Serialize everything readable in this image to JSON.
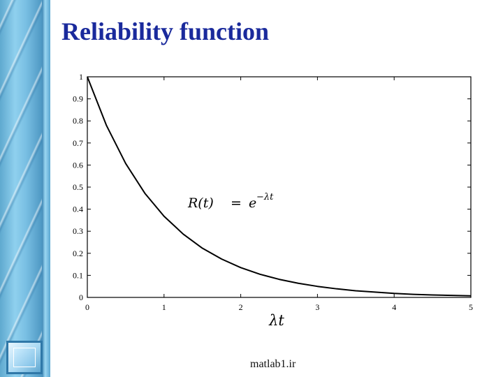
{
  "slide": {
    "title": "Reliability function",
    "footer": "matlab1.ir"
  },
  "chart_data": {
    "type": "line",
    "title": "",
    "xlabel": "λt",
    "ylabel": "",
    "xlim": [
      0,
      5
    ],
    "ylim": [
      0,
      1
    ],
    "xticks": [
      "0",
      "1",
      "2",
      "3",
      "4",
      "5"
    ],
    "yticks": [
      "0",
      "0.1",
      "0.2",
      "0.3",
      "0.4",
      "0.5",
      "0.6",
      "0.7",
      "0.8",
      "0.9",
      "1"
    ],
    "grid": false,
    "annotation": {
      "lhs": "R(t)",
      "eq": "=",
      "base": "e",
      "exponent": "−λt"
    },
    "series": [
      {
        "x": [
          0,
          0.25,
          0.5,
          0.75,
          1,
          1.25,
          1.5,
          1.75,
          2,
          2.25,
          2.5,
          2.75,
          3,
          3.25,
          3.5,
          3.75,
          4,
          4.25,
          4.5,
          4.75,
          5
        ],
        "y": [
          1,
          0.779,
          0.607,
          0.472,
          0.368,
          0.287,
          0.223,
          0.174,
          0.135,
          0.105,
          0.082,
          0.064,
          0.05,
          0.039,
          0.03,
          0.024,
          0.018,
          0.014,
          0.011,
          0.009,
          0.007
        ],
        "color": "#000000"
      }
    ]
  }
}
